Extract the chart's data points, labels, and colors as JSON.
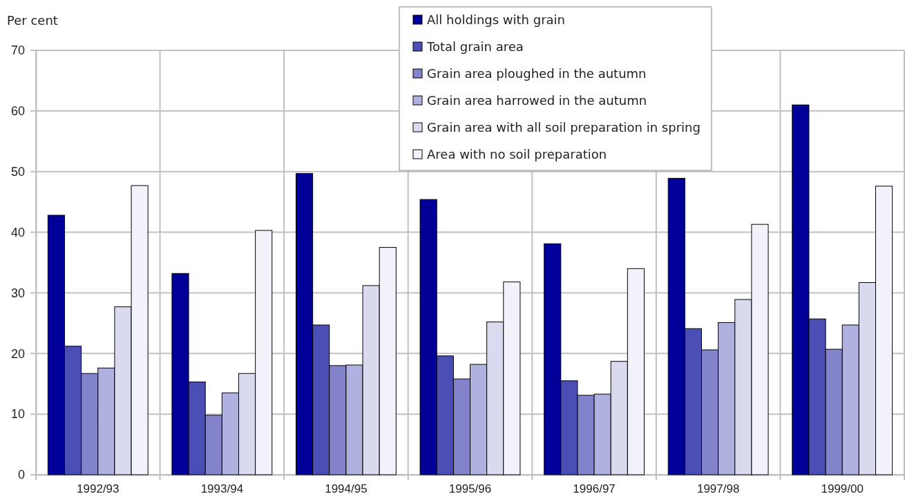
{
  "chart_data": {
    "type": "bar",
    "ylabel": "Per cent",
    "categories": [
      "1992/93",
      "1993/94",
      "1994/95",
      "1995/96",
      "1996/97",
      "1997/98",
      "1999/00"
    ],
    "series": [
      {
        "name": "All holdings with grain",
        "color": "#000099",
        "values": [
          42.8,
          33.2,
          49.7,
          45.4,
          38.1,
          48.9,
          61.0
        ]
      },
      {
        "name": "Total grain area",
        "color": "#4b4fb5",
        "values": [
          21.2,
          15.3,
          24.7,
          19.6,
          15.5,
          24.1,
          25.7
        ]
      },
      {
        "name": "Grain area ploughed in the autumn",
        "color": "#8283cb",
        "values": [
          16.7,
          9.8,
          18.0,
          15.8,
          13.1,
          20.6,
          20.7
        ]
      },
      {
        "name": "Grain area harrowed in the autumn",
        "color": "#b1b1e0",
        "values": [
          17.6,
          13.5,
          18.1,
          18.2,
          13.3,
          25.1,
          24.7
        ]
      },
      {
        "name": "Grain area with all soil preparation in spring",
        "color": "#d9daee",
        "values": [
          27.7,
          16.7,
          31.2,
          25.2,
          18.7,
          28.9,
          31.7
        ]
      },
      {
        "name": "Area with no soil preparation",
        "color": "#f2f2fa",
        "values": [
          47.7,
          40.3,
          37.5,
          31.8,
          34.0,
          41.3,
          47.6
        ]
      }
    ],
    "ylim": [
      0,
      70
    ],
    "yticks": [
      0,
      10,
      20,
      30,
      40,
      50,
      60,
      70
    ],
    "grid": true,
    "legend": "top"
  }
}
